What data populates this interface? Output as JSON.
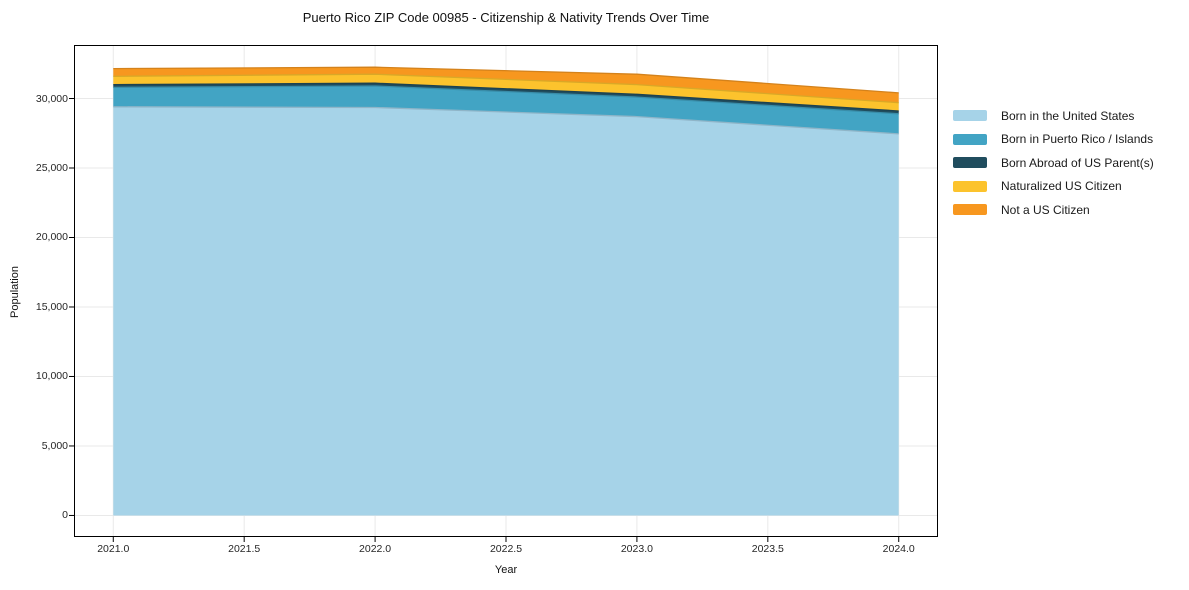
{
  "figure": {
    "title": "Puerto Rico ZIP Code 00985 - Citizenship & Nativity Trends Over Time",
    "xlabel": "Year",
    "ylabel": "Population"
  },
  "chart_data": {
    "type": "area",
    "stacked": true,
    "title": "Puerto Rico ZIP Code 00985 - Citizenship & Nativity Trends Over Time",
    "xlabel": "Year",
    "ylabel": "Population",
    "x": [
      2021,
      2022,
      2023,
      2024
    ],
    "series": [
      {
        "name": "Born in the United States",
        "color": "#a6d3e8",
        "values": [
          29400,
          29350,
          28700,
          27450
        ]
      },
      {
        "name": "Born in Puerto Rico / Islands",
        "color": "#42a4c4",
        "values": [
          1400,
          1550,
          1400,
          1450
        ]
      },
      {
        "name": "Born Abroad of US Parent(s)",
        "color": "#204d5e",
        "values": [
          200,
          200,
          200,
          200
        ]
      },
      {
        "name": "Naturalized US Citizen",
        "color": "#fcc32d",
        "values": [
          600,
          650,
          700,
          600
        ]
      },
      {
        "name": "Not a US Citizen",
        "color": "#f7971f",
        "values": [
          550,
          500,
          750,
          700
        ]
      }
    ],
    "stack_totals": [
      32150,
      32250,
      31750,
      30400
    ],
    "xlim": [
      2020.85,
      2024.15
    ],
    "ylim": [
      -1550,
      33850
    ],
    "xticks": [
      {
        "v": 2021.0,
        "label": "2021.0"
      },
      {
        "v": 2021.5,
        "label": "2021.5"
      },
      {
        "v": 2022.0,
        "label": "2022.0"
      },
      {
        "v": 2022.5,
        "label": "2022.5"
      },
      {
        "v": 2023.0,
        "label": "2023.0"
      },
      {
        "v": 2023.5,
        "label": "2023.5"
      },
      {
        "v": 2024.0,
        "label": "2024.0"
      }
    ],
    "yticks": [
      {
        "v": 0,
        "label": "0"
      },
      {
        "v": 5000,
        "label": "5,000"
      },
      {
        "v": 10000,
        "label": "10,000"
      },
      {
        "v": 15000,
        "label": "15,000"
      },
      {
        "v": 20000,
        "label": "20,000"
      },
      {
        "v": 25000,
        "label": "25,000"
      },
      {
        "v": 30000,
        "label": "30,000"
      }
    ],
    "grid": true,
    "grid_color": "#e9e9e9",
    "spine_color": "#000000",
    "legend_position": "right"
  }
}
